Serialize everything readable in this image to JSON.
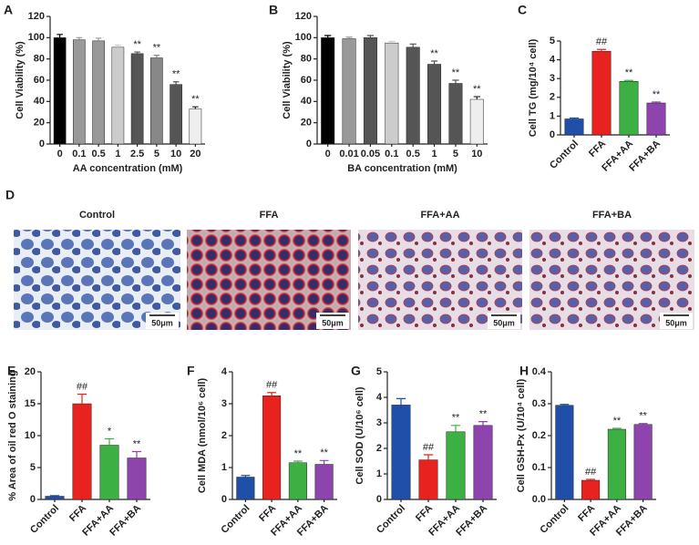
{
  "chart_data": [
    {
      "type": "bar",
      "panel": "A",
      "ylabel": "Cell Viability (%)",
      "xlabel": "AA concentration (mM)",
      "categories": [
        "0",
        "0.1",
        "0.5",
        "1",
        "2.5",
        "5",
        "10",
        "20"
      ],
      "values": [
        100,
        98,
        97,
        91,
        85,
        81,
        56,
        33
      ],
      "errors": [
        3,
        2,
        2.5,
        2,
        1.5,
        2.5,
        2.5,
        2
      ],
      "colors": [
        "#000000",
        "#999999",
        "#999999",
        "#cccccc",
        "#555555",
        "#888888",
        "#555555",
        "#eeeeee"
      ],
      "annotations": [
        null,
        null,
        null,
        null,
        "**",
        "**",
        "**",
        "**"
      ],
      "ylim": [
        0,
        120
      ],
      "yticks": [
        0,
        20,
        40,
        60,
        80,
        100,
        120
      ]
    },
    {
      "type": "bar",
      "panel": "B",
      "ylabel": "Cell Viability (%)",
      "xlabel": "BA concentration (mM)",
      "categories": [
        "0",
        "0.01",
        "0.05",
        "0.1",
        "0.5",
        "1",
        "5",
        "10"
      ],
      "values": [
        100,
        99,
        100,
        95,
        91,
        75,
        57,
        42
      ],
      "errors": [
        2,
        1.5,
        2,
        1.5,
        3,
        3,
        3,
        2.5
      ],
      "colors": [
        "#000000",
        "#999999",
        "#555555",
        "#cccccc",
        "#555555",
        "#555555",
        "#555555",
        "#eeeeee"
      ],
      "annotations": [
        null,
        null,
        null,
        null,
        null,
        "**",
        "**",
        "**"
      ],
      "ylim": [
        0,
        120
      ],
      "yticks": [
        0,
        20,
        40,
        60,
        80,
        100,
        120
      ]
    },
    {
      "type": "bar",
      "panel": "C",
      "ylabel": "Cell TG (mg/10⁴ cell)",
      "categories": [
        "Control",
        "FFA",
        "FFA+AA",
        "FFA+BA"
      ],
      "values": [
        0.85,
        4.45,
        2.85,
        1.7
      ],
      "errors": [
        0.05,
        0.1,
        0.05,
        0.05
      ],
      "colors": [
        "#1f4fa8",
        "#e8231f",
        "#3cb043",
        "#8e44ad"
      ],
      "annotations": [
        null,
        "##",
        "**",
        "**"
      ],
      "ylim": [
        0,
        5
      ],
      "yticks": [
        0,
        1,
        2,
        3,
        4,
        5
      ]
    },
    {
      "type": "bar",
      "panel": "E",
      "ylabel": "% Area of oil red O staining",
      "categories": [
        "Control",
        "FFA",
        "FFA+AA",
        "FFA+BA"
      ],
      "values": [
        0.5,
        15,
        8.5,
        6.5
      ],
      "errors": [
        0.1,
        1.5,
        1,
        1
      ],
      "colors": [
        "#1f4fa8",
        "#e8231f",
        "#3cb043",
        "#8e44ad"
      ],
      "annotations": [
        null,
        "##",
        "*",
        "**"
      ],
      "ylim": [
        0,
        20
      ],
      "yticks": [
        0,
        5,
        10,
        15,
        20
      ]
    },
    {
      "type": "bar",
      "panel": "F",
      "ylabel": "Cell MDA (nmol/10⁶ cell)",
      "categories": [
        "Control",
        "FFA",
        "FFA+AA",
        "FFA+BA"
      ],
      "values": [
        0.7,
        3.25,
        1.15,
        1.1
      ],
      "errors": [
        0.05,
        0.1,
        0.05,
        0.12
      ],
      "colors": [
        "#1f4fa8",
        "#e8231f",
        "#3cb043",
        "#8e44ad"
      ],
      "annotations": [
        null,
        "##",
        "**",
        "**"
      ],
      "ylim": [
        0,
        4
      ],
      "yticks": [
        0,
        1,
        2,
        3,
        4
      ]
    },
    {
      "type": "bar",
      "panel": "G",
      "ylabel": "Cell SOD (U/10⁶ cell)",
      "categories": [
        "Control",
        "FFA",
        "FFA+AA",
        "FFA+BA"
      ],
      "values": [
        3.7,
        1.55,
        2.65,
        2.9
      ],
      "errors": [
        0.25,
        0.2,
        0.25,
        0.15
      ],
      "colors": [
        "#1f4fa8",
        "#e8231f",
        "#3cb043",
        "#8e44ad"
      ],
      "annotations": [
        null,
        "##",
        "**",
        "**"
      ],
      "ylim": [
        0,
        5
      ],
      "yticks": [
        0,
        1,
        2,
        3,
        4,
        5
      ]
    },
    {
      "type": "bar",
      "panel": "H",
      "ylabel": "Cell GSH-Px (U/10⁴ cell)",
      "categories": [
        "Control",
        "FFA",
        "FFA+AA",
        "FFA+BA"
      ],
      "values": [
        0.295,
        0.06,
        0.22,
        0.235
      ],
      "errors": [
        0.003,
        0.003,
        0.003,
        0.003
      ],
      "colors": [
        "#1f4fa8",
        "#e8231f",
        "#3cb043",
        "#8e44ad"
      ],
      "annotations": [
        null,
        "##",
        "**",
        "**"
      ],
      "ylim": [
        0,
        0.4
      ],
      "yticks": [
        {
          "value": 0,
          "label": "0.0"
        },
        0.1,
        0.2,
        0.3,
        0.4
      ]
    }
  ],
  "micrographs": {
    "panel": "D",
    "labels": [
      "Control",
      "FFA",
      "FFA+AA",
      "FFA+BA"
    ],
    "scale_bar": "50μm"
  }
}
